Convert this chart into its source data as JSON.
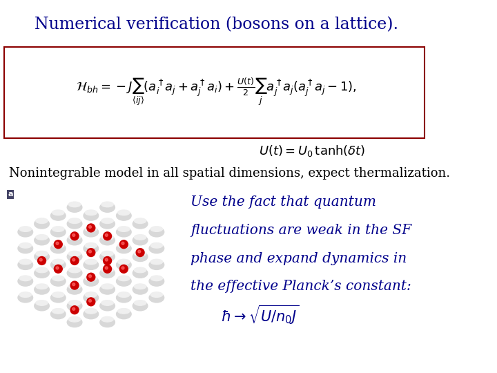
{
  "title": "Numerical verification (bosons on a lattice).",
  "title_color": "#00008B",
  "title_fontsize": 17,
  "bg_color": "#ffffff",
  "hamiltonian_latex": "$\\mathcal{H}_{bh} = -J\\sum_{\\langle ij\\rangle}(a_i^\\dagger a_j + a_j^\\dagger a_i) + \\frac{U(t)}{2}\\sum_j a_j^\\dagger a_j(a_j^\\dagger a_j - 1),$",
  "ut_latex": "$U(t) = U_0\\,\\tanh(\\delta t)$",
  "nonint_text": "Nonintegrable model in all spatial dimensions, expect thermalization.",
  "italic_text_lines": [
    "Use the fact that quantum",
    "fluctuations are weak in the SF",
    "phase and expand dynamics in",
    "the effective Planck’s constant:"
  ],
  "planck_latex": "$\\hbar \\rightarrow \\sqrt{U/n_0 J}$",
  "box_edge_color": "#8B0000",
  "text_blue": "#00008B",
  "italic_blue": "#00008B",
  "nonint_fontsize": 13,
  "italic_fontsize": 14.5,
  "planck_fontsize": 15,
  "hamiltonian_fontsize": 13,
  "ut_fontsize": 13
}
